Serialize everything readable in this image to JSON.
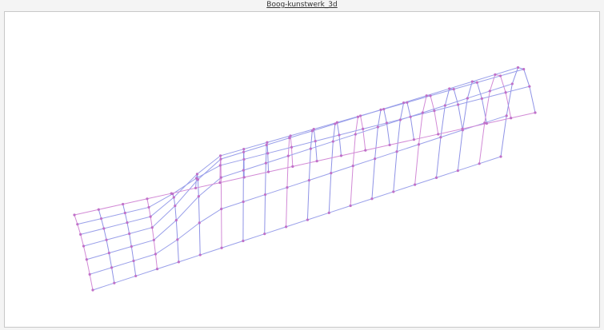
{
  "window": {
    "title": "Boog-kunstwerk_3d"
  }
}
